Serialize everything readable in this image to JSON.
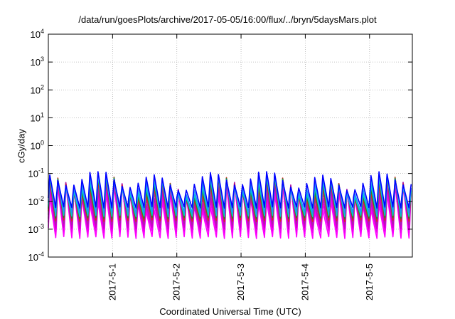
{
  "chart_data": {
    "type": "line",
    "title": "/data/run/goesPlots/archive/2017-05-05/16:00/flux/../bryn/5daysMars.plot",
    "xlabel": "Coordinated Universal Time (UTC)",
    "ylabel": "cGy/day",
    "yscale": "log",
    "ylim": [
      0.0001,
      10000
    ],
    "yticks": [
      {
        "value": 0.0001,
        "base": "10",
        "exp": "-4"
      },
      {
        "value": 0.001,
        "base": "10",
        "exp": "-3"
      },
      {
        "value": 0.01,
        "base": "10",
        "exp": "-2"
      },
      {
        "value": 0.1,
        "base": "10",
        "exp": "-1"
      },
      {
        "value": 1,
        "base": "10",
        "exp": "0"
      },
      {
        "value": 10,
        "base": "10",
        "exp": "1"
      },
      {
        "value": 100,
        "base": "10",
        "exp": "2"
      },
      {
        "value": 1000,
        "base": "10",
        "exp": "3"
      },
      {
        "value": 10000,
        "base": "10",
        "exp": "4"
      }
    ],
    "xlim": [
      "2017-04-30 00:00",
      "2017-05-05 16:00"
    ],
    "xticks": [
      "2017-5-1",
      "2017-5-2",
      "2017-5-3",
      "2017-5-4",
      "2017-5-5"
    ],
    "grid": true,
    "oscillation_period_hours": 3,
    "series": [
      {
        "color": "#ff00ff",
        "peak": 0.025,
        "trough": 0.0005
      },
      {
        "color": "#ee00ee",
        "peak": 0.03,
        "trough": 0.0008
      },
      {
        "color": "#cc00cc",
        "peak": 0.035,
        "trough": 0.0011
      },
      {
        "color": "#aa22aa",
        "peak": 0.045,
        "trough": 0.0015
      },
      {
        "color": "#dd2222",
        "peak": 0.05,
        "trough": 0.002
      },
      {
        "color": "#228b22",
        "peak": 0.055,
        "trough": 0.0025
      },
      {
        "color": "#00cccc",
        "peak": 0.06,
        "trough": 0.003
      },
      {
        "color": "#1e90ff",
        "peak": 0.07,
        "trough": 0.004
      },
      {
        "color": "#0000ff",
        "peak": 0.085,
        "trough": 0.006
      }
    ]
  }
}
